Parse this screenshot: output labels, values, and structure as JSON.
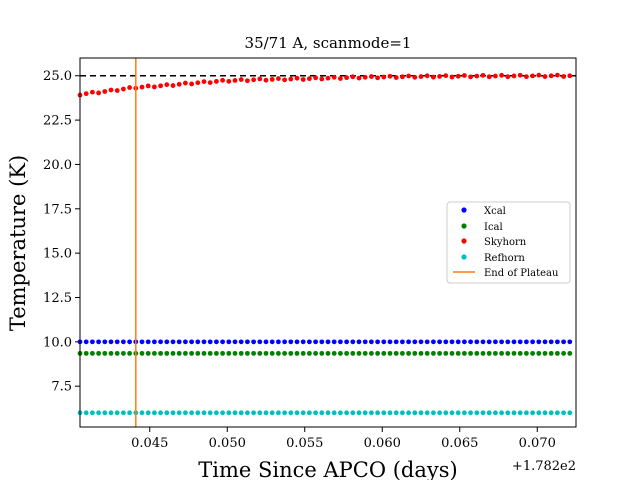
{
  "chart_data": {
    "type": "scatter",
    "title": "35/71 A, scanmode=1",
    "xlabel": "Time Since APCO (days)",
    "ylabel": "Temperature (K)",
    "x_offset_label": "+1.782e2",
    "xlim": [
      0.0405,
      0.0725
    ],
    "ylim": [
      5.2,
      26.0
    ],
    "x_tick_values": [
      0.045,
      0.05,
      0.055,
      0.06,
      0.065,
      0.07
    ],
    "x_tick_labels": [
      "0.045",
      "0.050",
      "0.055",
      "0.060",
      "0.065",
      "0.070"
    ],
    "y_tick_values": [
      7.5,
      10.0,
      12.5,
      15.0,
      17.5,
      20.0,
      22.5,
      25.0
    ],
    "y_tick_labels": [
      "7.5",
      "10.0",
      "12.5",
      "15.0",
      "17.5",
      "20.0",
      "22.5",
      "25.0"
    ],
    "x_start": 0.0405,
    "x_step": 0.0004,
    "n_points": 81,
    "reference_line": {
      "y": 25.0,
      "style": "dashed",
      "color": "#000000"
    },
    "vertical_line": {
      "name": "End of Plateau",
      "x": 0.0441,
      "color": "#ff7f0e"
    },
    "series": [
      {
        "name": "Xcal",
        "color": "#0000ff",
        "y": 10.0
      },
      {
        "name": "Ical",
        "color": "#008000",
        "y": 9.35
      },
      {
        "name": "Skyhorn",
        "color": "#ff0000",
        "profile": [
          [
            0.0405,
            23.95
          ],
          [
            0.042,
            24.1
          ],
          [
            0.044,
            24.33
          ],
          [
            0.046,
            24.45
          ],
          [
            0.048,
            24.6
          ],
          [
            0.05,
            24.72
          ],
          [
            0.052,
            24.78
          ],
          [
            0.055,
            24.83
          ],
          [
            0.058,
            24.9
          ],
          [
            0.062,
            24.95
          ],
          [
            0.066,
            24.98
          ],
          [
            0.0725,
            25.0
          ]
        ]
      },
      {
        "name": "Refhorn",
        "color": "#00bfbf",
        "y": 6.0
      }
    ],
    "legend": {
      "position": "center-right"
    },
    "grid": false
  }
}
